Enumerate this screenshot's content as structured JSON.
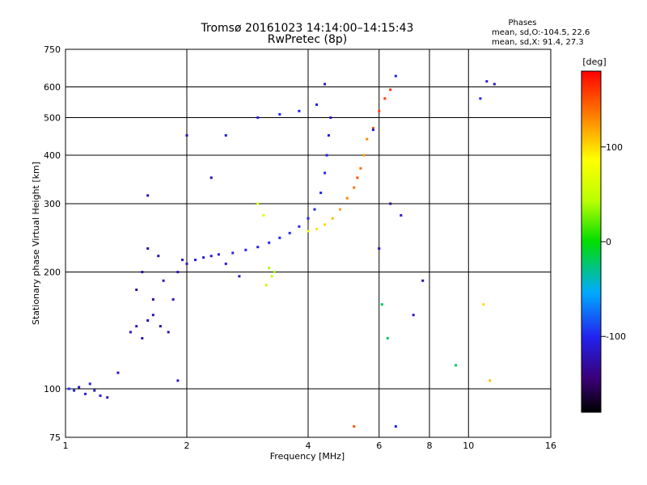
{
  "header": {
    "title_line1": "Tromsø 20161023 14:14:00–14:15:43",
    "title_line2": "RwPretec (8p)",
    "phases_label": "Phases",
    "stat_line1": "mean, sd,O:-104.5, 22.6",
    "stat_line2": "mean, sd,X:  91.4, 27.3"
  },
  "chart_data": {
    "type": "scatter",
    "xlabel": "Frequency [MHz]",
    "ylabel": "Stationary phase Virtual Height [km]",
    "x_scale": "log",
    "y_scale": "log",
    "xlim": [
      1,
      16
    ],
    "ylim": [
      75,
      750
    ],
    "x_ticks": [
      1,
      2,
      4,
      6,
      8,
      10,
      16
    ],
    "x_tick_labels": [
      "1",
      "2",
      "4",
      "6",
      "8",
      "10",
      "16"
    ],
    "x_gridlines": [
      2,
      4,
      6,
      8,
      10
    ],
    "y_ticks": [
      75,
      100,
      200,
      300,
      400,
      500,
      600,
      750
    ],
    "y_tick_labels": [
      "75",
      "100",
      "200",
      "300",
      "400",
      "500",
      "600",
      "750"
    ],
    "y_gridlines": [
      100,
      200,
      300,
      400,
      500,
      600
    ],
    "grid": true,
    "colorbar": {
      "label": "[deg]",
      "range": [
        -180,
        180
      ],
      "ticks": [
        100,
        0,
        -100
      ],
      "tick_labels": [
        "100",
        "0",
        "-100"
      ]
    },
    "points": [
      [
        1.02,
        100,
        -95
      ],
      [
        1.05,
        99,
        -100
      ],
      [
        1.08,
        101,
        -110
      ],
      [
        1.12,
        97,
        -105
      ],
      [
        1.15,
        103,
        -100
      ],
      [
        1.18,
        99,
        -110
      ],
      [
        1.22,
        96,
        -110
      ],
      [
        1.27,
        95,
        -120
      ],
      [
        1.35,
        110,
        -115
      ],
      [
        1.45,
        140,
        -115
      ],
      [
        1.5,
        145,
        -112
      ],
      [
        1.55,
        135,
        -125
      ],
      [
        1.6,
        150,
        -128
      ],
      [
        1.65,
        155,
        -120
      ],
      [
        1.72,
        145,
        -125
      ],
      [
        1.8,
        140,
        -115
      ],
      [
        1.5,
        180,
        -130
      ],
      [
        1.55,
        200,
        -128
      ],
      [
        1.6,
        230,
        -125
      ],
      [
        1.65,
        170,
        -135
      ],
      [
        1.7,
        220,
        -130
      ],
      [
        1.75,
        190,
        -120
      ],
      [
        1.85,
        170,
        -120
      ],
      [
        1.9,
        200,
        -118
      ],
      [
        1.95,
        215,
        -115
      ],
      [
        2.0,
        210,
        -110
      ],
      [
        2.1,
        215,
        -105
      ],
      [
        2.2,
        218,
        -110
      ],
      [
        2.3,
        220,
        -108
      ],
      [
        2.4,
        222,
        -105
      ],
      [
        2.6,
        224,
        -102
      ],
      [
        2.8,
        228,
        -100
      ],
      [
        3.0,
        232,
        -100
      ],
      [
        3.2,
        238,
        -100
      ],
      [
        3.4,
        245,
        -100
      ],
      [
        3.6,
        252,
        -98
      ],
      [
        3.8,
        262,
        -100
      ],
      [
        4.0,
        275,
        -100
      ],
      [
        4.15,
        290,
        -100
      ],
      [
        4.3,
        320,
        -100
      ],
      [
        4.4,
        360,
        -100
      ],
      [
        4.45,
        400,
        -105
      ],
      [
        4.5,
        450,
        -105
      ],
      [
        4.55,
        500,
        -110
      ],
      [
        4.4,
        610,
        -120
      ],
      [
        3.0,
        300,
        65
      ],
      [
        3.1,
        280,
        65
      ],
      [
        3.2,
        205,
        40
      ],
      [
        3.25,
        195,
        45
      ],
      [
        3.15,
        185,
        50
      ],
      [
        3.3,
        200,
        35
      ],
      [
        4.0,
        255,
        90
      ],
      [
        4.2,
        258,
        95
      ],
      [
        4.4,
        265,
        100
      ],
      [
        4.6,
        275,
        110
      ],
      [
        4.8,
        290,
        120
      ],
      [
        5.0,
        310,
        130
      ],
      [
        5.2,
        330,
        140
      ],
      [
        5.3,
        350,
        150
      ],
      [
        5.4,
        370,
        140
      ],
      [
        5.5,
        400,
        120
      ],
      [
        5.6,
        440,
        130
      ],
      [
        5.8,
        470,
        150
      ],
      [
        6.0,
        520,
        155
      ],
      [
        6.2,
        560,
        160
      ],
      [
        6.4,
        590,
        165
      ],
      [
        2.5,
        450,
        -105
      ],
      [
        3.0,
        500,
        -105
      ],
      [
        3.4,
        510,
        -100
      ],
      [
        3.8,
        520,
        -100
      ],
      [
        4.2,
        540,
        -105
      ],
      [
        1.9,
        105,
        -110
      ],
      [
        6.1,
        165,
        -20
      ],
      [
        6.3,
        135,
        -20
      ],
      [
        6.8,
        280,
        -110
      ],
      [
        7.3,
        155,
        -110
      ],
      [
        7.7,
        190,
        -130
      ],
      [
        9.3,
        115,
        -20
      ],
      [
        10.9,
        165,
        100
      ],
      [
        11.3,
        105,
        110
      ],
      [
        11.1,
        620,
        -110
      ],
      [
        10.7,
        560,
        -100
      ],
      [
        11.6,
        610,
        -110
      ],
      [
        6.6,
        640,
        -100
      ],
      [
        6.4,
        300,
        -135
      ],
      [
        6.0,
        230,
        -125
      ],
      [
        5.2,
        80,
        150
      ],
      [
        6.6,
        80,
        -100
      ],
      [
        5.8,
        465,
        -110
      ],
      [
        2.3,
        350,
        -130
      ],
      [
        2.0,
        450,
        -120
      ],
      [
        1.6,
        315,
        -125
      ],
      [
        2.5,
        210,
        -110
      ],
      [
        2.7,
        195,
        -120
      ]
    ]
  }
}
